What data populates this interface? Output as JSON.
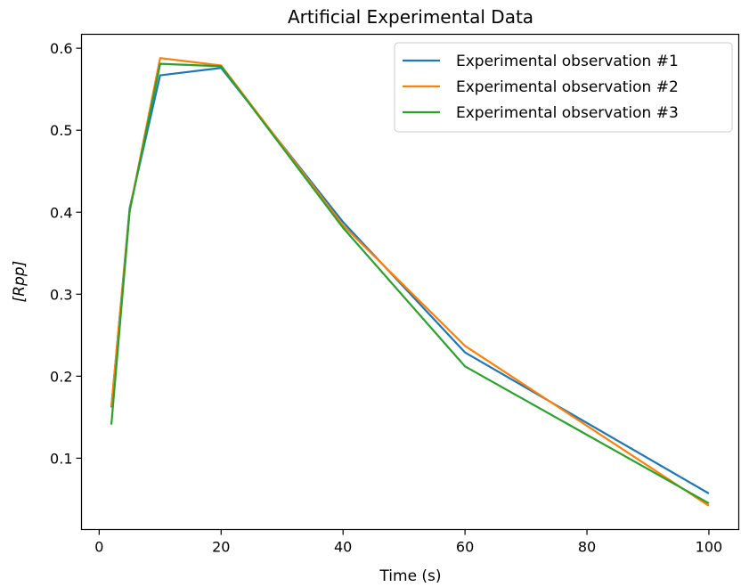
{
  "chart_data": {
    "type": "line",
    "title": "Artificial Experimental Data",
    "xlabel": "Time (s)",
    "ylabel": "[Rpp]",
    "xlim": [
      -2.9,
      104.9
    ],
    "ylim": [
      0.013,
      0.617
    ],
    "xticks": [
      0,
      20,
      40,
      60,
      80,
      100
    ],
    "yticks": [
      0.1,
      0.2,
      0.3,
      0.4,
      0.5,
      0.6
    ],
    "xtick_labels": [
      "0",
      "20",
      "40",
      "60",
      "80",
      "100"
    ],
    "ytick_labels": [
      "0.1",
      "0.2",
      "0.3",
      "0.4",
      "0.5",
      "0.6"
    ],
    "grid": false,
    "legend_position": "top-right",
    "x": [
      2,
      5,
      10,
      20,
      40,
      60,
      100
    ],
    "series": [
      {
        "name": "Experimental observation #1",
        "color": "#1f77b4",
        "values": [
          0.162,
          0.405,
          0.567,
          0.576,
          0.388,
          0.229,
          0.057
        ]
      },
      {
        "name": "Experimental observation #2",
        "color": "#ff7f0e",
        "values": [
          0.163,
          0.402,
          0.588,
          0.579,
          0.384,
          0.237,
          0.042
        ]
      },
      {
        "name": "Experimental observation #3",
        "color": "#2ca02c",
        "values": [
          0.141,
          0.401,
          0.581,
          0.578,
          0.381,
          0.212,
          0.045
        ]
      }
    ]
  }
}
